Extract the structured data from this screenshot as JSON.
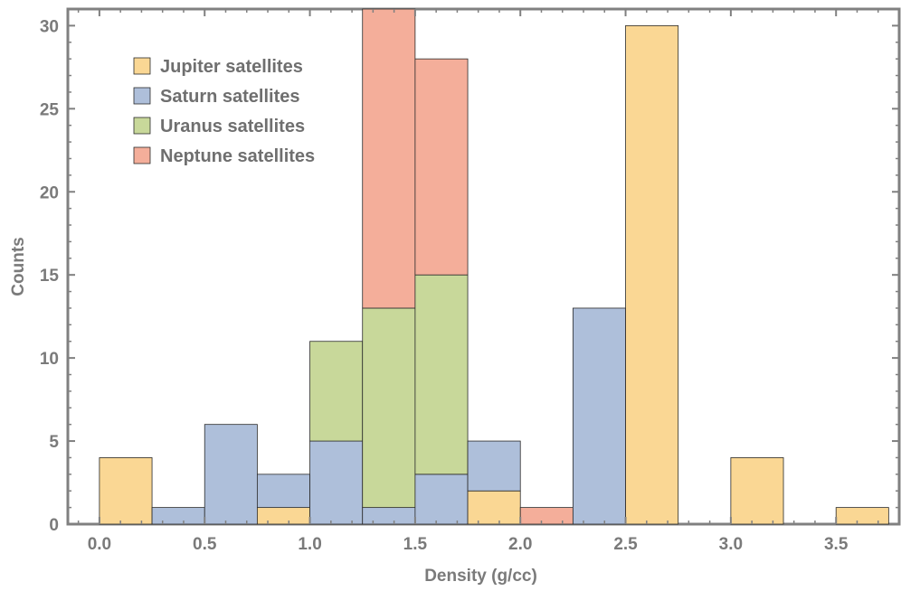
{
  "chart_data": {
    "type": "bar",
    "stacked": true,
    "title": "",
    "xlabel": "Density (g/cc)",
    "ylabel": "Counts",
    "xlim": [
      -0.15,
      3.8
    ],
    "ylim": [
      0,
      31
    ],
    "x_ticks": [
      0.0,
      0.5,
      1.0,
      1.5,
      2.0,
      2.5,
      3.0,
      3.5
    ],
    "x_tick_labels": [
      "0.0",
      "0.5",
      "1.0",
      "1.5",
      "2.0",
      "2.5",
      "3.0",
      "3.5"
    ],
    "y_ticks": [
      0,
      5,
      10,
      15,
      20,
      25,
      30
    ],
    "y_tick_labels": [
      "0",
      "5",
      "10",
      "15",
      "20",
      "25",
      "30"
    ],
    "bin_edges": [
      0.0,
      0.25,
      0.5,
      0.75,
      1.0,
      1.25,
      1.5,
      1.75,
      2.0,
      2.25,
      2.5,
      2.75,
      3.0,
      3.25,
      3.5,
      3.75
    ],
    "series": [
      {
        "name": "Jupiter satellites",
        "color": "#fad794",
        "values": [
          4,
          0,
          0,
          1,
          0,
          0,
          0,
          2,
          0,
          0,
          30,
          0,
          4,
          0,
          1
        ]
      },
      {
        "name": "Saturn satellites",
        "color": "#aebfda",
        "values": [
          0,
          1,
          6,
          2,
          5,
          1,
          3,
          3,
          0,
          13,
          0,
          0,
          0,
          0,
          0
        ]
      },
      {
        "name": "Uranus satellites",
        "color": "#c8d89a",
        "values": [
          0,
          0,
          0,
          0,
          6,
          12,
          12,
          0,
          0,
          0,
          0,
          0,
          0,
          0,
          0
        ]
      },
      {
        "name": "Neptune satellites",
        "color": "#f4ae9a",
        "values": [
          0,
          0,
          0,
          0,
          0,
          18,
          13,
          0,
          1,
          0,
          0,
          0,
          0,
          0,
          0
        ]
      }
    ],
    "overlap_note": "",
    "legend_position": "top-left",
    "grid": false,
    "axis_color": "#808080"
  }
}
